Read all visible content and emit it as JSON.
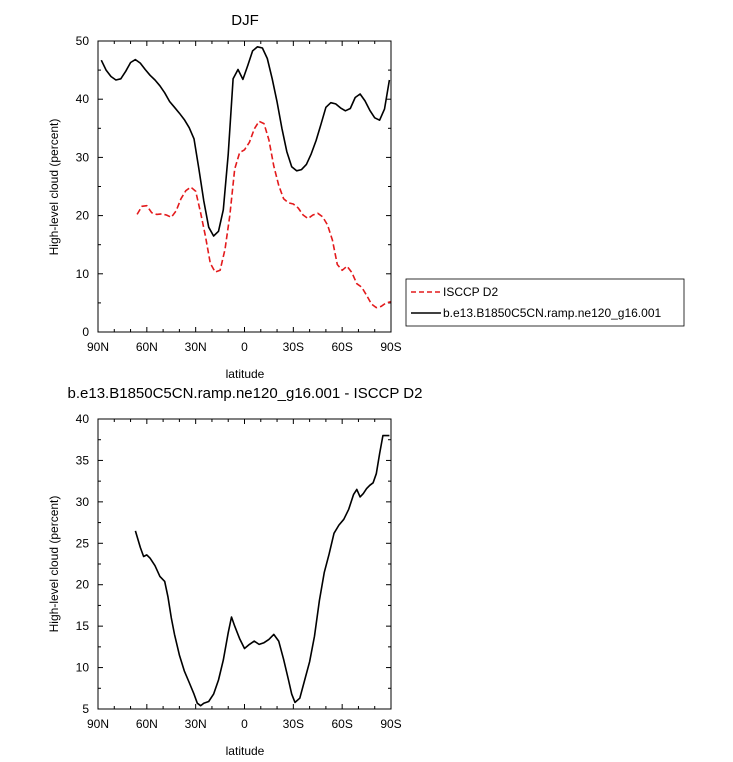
{
  "chart_data": [
    {
      "type": "line",
      "title": "DJF",
      "xlabel": "latitude",
      "ylabel": "High-level cloud (percent)",
      "xlim": [
        -90,
        90
      ],
      "ylim": [
        0,
        50
      ],
      "x_ticks": [
        -90,
        -60,
        -30,
        0,
        30,
        60,
        90
      ],
      "x_tick_labels": [
        "90N",
        "60N",
        "30N",
        "0",
        "30S",
        "60S",
        "90S"
      ],
      "y_ticks": [
        0,
        10,
        20,
        30,
        40,
        50
      ],
      "y_tick_labels": [
        "0",
        "10",
        "20",
        "30",
        "40",
        "50"
      ],
      "legend_position": "right",
      "series": [
        {
          "name": "ISCCP D2",
          "color": "#e31a1c",
          "dash": "dashed",
          "x": [
            -66,
            -63,
            -60,
            -57,
            -54,
            -51,
            -48,
            -45,
            -42,
            -39,
            -36,
            -33,
            -30,
            -27,
            -24,
            -21,
            -18,
            -15,
            -12,
            -9,
            -6,
            -3,
            0,
            3,
            6,
            9,
            12,
            15,
            18,
            21,
            24,
            27,
            30,
            33,
            36,
            39,
            42,
            45,
            48,
            51,
            54,
            57,
            60,
            63,
            66,
            69,
            72,
            75,
            78,
            81,
            84,
            87,
            90
          ],
          "y": [
            20.2,
            21.6,
            21.7,
            20.5,
            20.2,
            20.3,
            20.1,
            19.7,
            20.8,
            22.9,
            24.3,
            24.9,
            24.2,
            20.5,
            16.5,
            11.8,
            10.3,
            10.6,
            14.2,
            20.0,
            28.0,
            30.8,
            31.3,
            32.6,
            34.9,
            36.2,
            35.8,
            33.0,
            28.5,
            25.2,
            22.9,
            22.2,
            22.0,
            21.3,
            20.1,
            19.5,
            20.1,
            20.4,
            19.8,
            18.4,
            15.8,
            11.6,
            10.6,
            11.3,
            10.2,
            8.3,
            7.7,
            6.3,
            4.8,
            4.2,
            4.4,
            5.0,
            5.2
          ]
        },
        {
          "name": "b.e13.B1850C5CN.ramp.ne120_g16.001",
          "color": "#000000",
          "dash": "solid",
          "x": [
            -88,
            -85,
            -82,
            -79,
            -76,
            -73,
            -70,
            -67,
            -64,
            -61,
            -58,
            -55,
            -52,
            -49,
            -46,
            -43,
            -40,
            -37,
            -34,
            -31,
            -28,
            -25,
            -22,
            -19,
            -16,
            -13,
            -10,
            -7,
            -4,
            -1,
            2,
            5,
            8,
            11,
            14,
            17,
            20,
            23,
            26,
            29,
            32,
            35,
            38,
            41,
            44,
            47,
            50,
            53,
            56,
            59,
            62,
            65,
            68,
            71,
            74,
            77,
            80,
            83,
            86,
            89
          ],
          "y": [
            46.7,
            45.0,
            43.9,
            43.3,
            43.5,
            44.8,
            46.3,
            46.8,
            46.2,
            45.1,
            44.1,
            43.3,
            42.3,
            41.1,
            39.6,
            38.6,
            37.6,
            36.5,
            35.1,
            33.2,
            28.0,
            22.5,
            18.0,
            16.5,
            17.3,
            21.0,
            30.5,
            43.5,
            45.1,
            43.4,
            45.8,
            48.3,
            49.0,
            48.8,
            47.0,
            43.5,
            39.5,
            35.0,
            31.0,
            28.4,
            27.7,
            27.9,
            28.8,
            30.6,
            32.9,
            35.7,
            38.6,
            39.4,
            39.2,
            38.5,
            38.0,
            38.4,
            40.3,
            40.9,
            39.7,
            38.1,
            36.8,
            36.4,
            38.3,
            43.3
          ]
        }
      ]
    },
    {
      "type": "line",
      "title": "b.e13.B1850C5CN.ramp.ne120_g16.001 - ISCCP D2",
      "xlabel": "latitude",
      "ylabel": "High-level cloud (percent)",
      "xlim": [
        -90,
        90
      ],
      "ylim": [
        5,
        40
      ],
      "x_ticks": [
        -90,
        -60,
        -30,
        0,
        30,
        60,
        90
      ],
      "x_tick_labels": [
        "90N",
        "60N",
        "30N",
        "0",
        "30S",
        "60S",
        "90S"
      ],
      "y_ticks": [
        5,
        10,
        15,
        20,
        25,
        30,
        35,
        40
      ],
      "y_tick_labels": [
        "5",
        "10",
        "15",
        "20",
        "25",
        "30",
        "35",
        "40"
      ],
      "series": [
        {
          "name": "b.e13.B1850C5CN.ramp.ne120_g16.001 - ISCCP D2",
          "color": "#000000",
          "dash": "solid",
          "x": [
            -67,
            -64,
            -62,
            -60,
            -58,
            -55,
            -52,
            -49,
            -47,
            -45,
            -43,
            -40,
            -37,
            -34,
            -31,
            -29,
            -27,
            -25,
            -22,
            -19,
            -16,
            -13,
            -10,
            -8,
            -6,
            -3,
            0,
            3,
            6,
            9,
            12,
            15,
            18,
            21,
            24,
            27,
            29,
            31,
            34,
            37,
            40,
            43,
            46,
            49,
            52,
            55,
            58,
            61,
            64,
            67,
            69,
            71,
            73,
            75,
            77,
            79,
            81,
            83,
            85,
            87,
            89
          ],
          "y": [
            26.5,
            24.5,
            23.4,
            23.6,
            23.2,
            22.3,
            21.0,
            20.4,
            18.5,
            16.0,
            14.0,
            11.5,
            9.6,
            8.2,
            6.8,
            5.7,
            5.4,
            5.7,
            5.9,
            6.8,
            8.5,
            10.9,
            14.2,
            16.1,
            15.0,
            13.5,
            12.3,
            12.8,
            13.2,
            12.8,
            13.0,
            13.4,
            14.0,
            13.2,
            11.0,
            8.5,
            6.8,
            5.8,
            6.3,
            8.5,
            10.7,
            13.8,
            18.1,
            21.5,
            23.7,
            26.2,
            27.2,
            27.9,
            29.1,
            30.9,
            31.5,
            30.6,
            31.0,
            31.6,
            32.0,
            32.3,
            33.4,
            35.8,
            38.0,
            38.0,
            38.0
          ]
        }
      ]
    }
  ]
}
